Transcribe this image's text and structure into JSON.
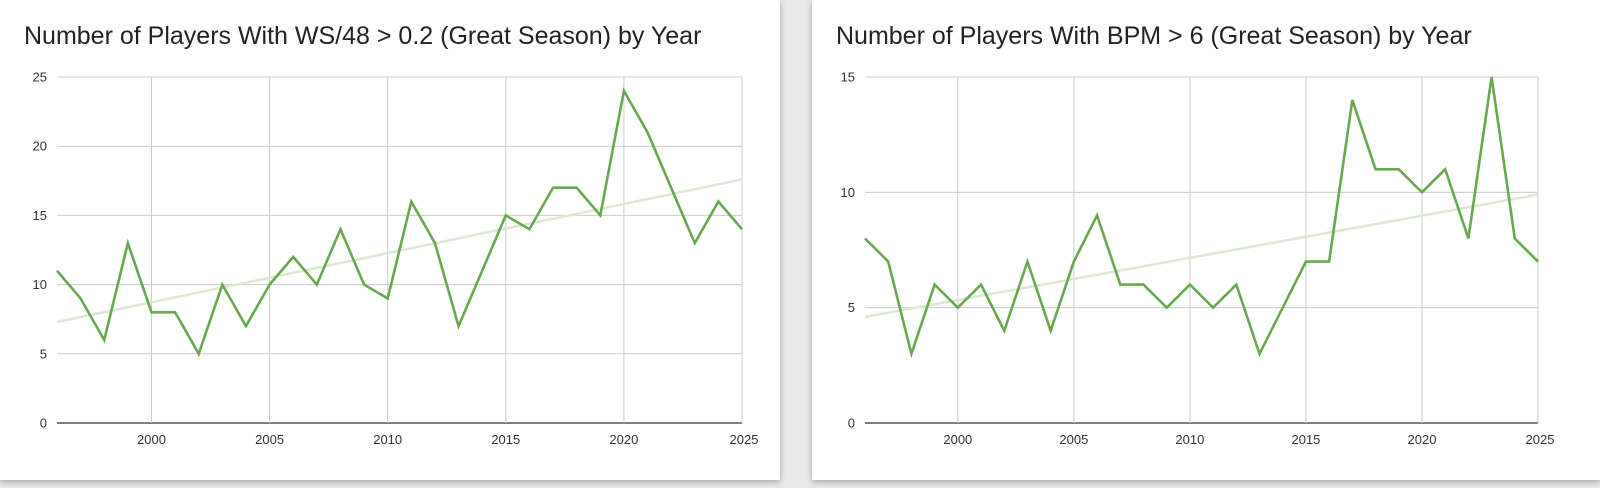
{
  "colors": {
    "line": "#6aa84f",
    "trendline": "#d9ead3",
    "grid": "#cccccc",
    "axis": "#333333"
  },
  "chart_data": [
    {
      "type": "line",
      "title": "Number of Players With WS/48 > 0.2 (Great Season) by Year",
      "xlabel": "",
      "ylabel": "",
      "xlim": [
        1996,
        2025
      ],
      "ylim": [
        0,
        25
      ],
      "x_ticks": [
        2000,
        2005,
        2010,
        2015,
        2020,
        2025
      ],
      "y_ticks": [
        0,
        5,
        10,
        15,
        20,
        25
      ],
      "grid": true,
      "legend": "none",
      "x": [
        1996,
        1997,
        1998,
        1999,
        2000,
        2001,
        2002,
        2003,
        2004,
        2005,
        2006,
        2007,
        2008,
        2009,
        2010,
        2011,
        2012,
        2013,
        2014,
        2015,
        2016,
        2017,
        2018,
        2019,
        2020,
        2021,
        2022,
        2023,
        2024,
        2025
      ],
      "series": [
        {
          "values": [
            11,
            9,
            6,
            13,
            8,
            8,
            5,
            10,
            7,
            10,
            12,
            10,
            14,
            10,
            9,
            16,
            13,
            7,
            11,
            15,
            14,
            17,
            17,
            15,
            24,
            21,
            17,
            13,
            16,
            14
          ]
        }
      ],
      "trendline": {
        "start": [
          1996,
          7.3
        ],
        "end": [
          2025,
          17.6
        ]
      }
    },
    {
      "type": "line",
      "title": "Number of Players With BPM > 6 (Great Season) by Year",
      "xlabel": "",
      "ylabel": "",
      "xlim": [
        1996,
        2025
      ],
      "ylim": [
        0,
        15
      ],
      "x_ticks": [
        2000,
        2005,
        2010,
        2015,
        2020,
        2025
      ],
      "y_ticks": [
        0,
        5,
        10,
        15
      ],
      "grid": true,
      "legend": "none",
      "x": [
        1996,
        1997,
        1998,
        1999,
        2000,
        2001,
        2002,
        2003,
        2004,
        2005,
        2006,
        2007,
        2008,
        2009,
        2010,
        2011,
        2012,
        2013,
        2014,
        2015,
        2016,
        2017,
        2018,
        2019,
        2020,
        2021,
        2022,
        2023,
        2024,
        2025
      ],
      "series": [
        {
          "values": [
            8,
            7,
            3,
            6,
            5,
            6,
            4,
            7,
            4,
            7,
            9,
            6,
            6,
            5,
            6,
            5,
            6,
            3,
            5,
            7,
            7,
            14,
            11,
            11,
            10,
            11,
            8,
            15,
            8,
            7
          ]
        }
      ],
      "trendline": {
        "start": [
          1996,
          4.6
        ],
        "end": [
          2025,
          9.9
        ]
      }
    }
  ]
}
